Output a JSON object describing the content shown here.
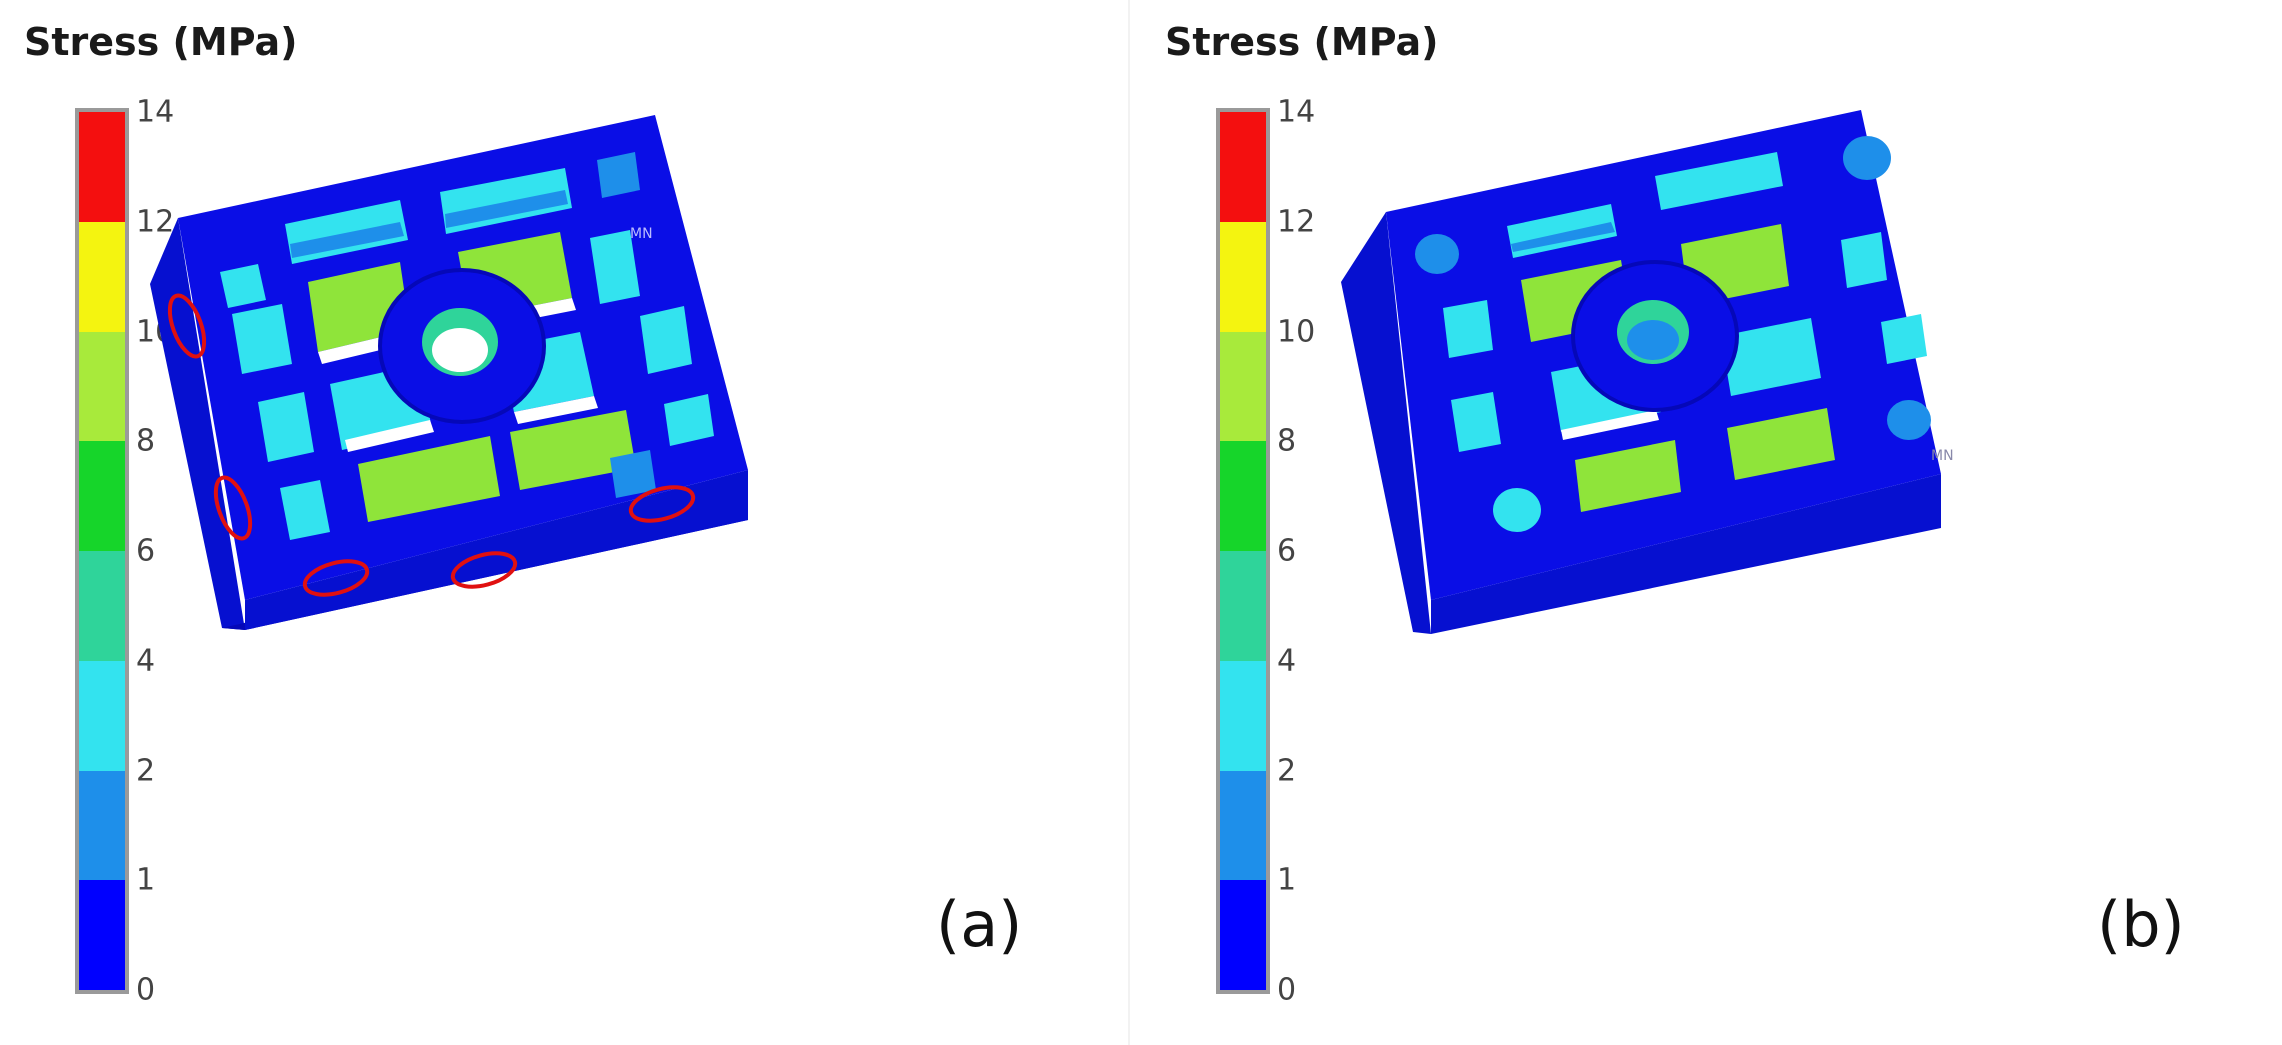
{
  "colorbar": {
    "title": "Stress (MPa)",
    "bands": [
      {
        "from": 0,
        "to": 1,
        "color": "#0000ff"
      },
      {
        "from": 1,
        "to": 2,
        "color": "#1e8fea"
      },
      {
        "from": 2,
        "to": 4,
        "color": "#33e3ef"
      },
      {
        "from": 4,
        "to": 6,
        "color": "#2fd49a"
      },
      {
        "from": 6,
        "to": 8,
        "color": "#16d52a"
      },
      {
        "from": 8,
        "to": 10,
        "color": "#a8ea3b"
      },
      {
        "from": 10,
        "to": 12,
        "color": "#f4f410"
      },
      {
        "from": 12,
        "to": 14,
        "color": "#f40f0f"
      }
    ],
    "ticks": [
      "0",
      "1",
      "2",
      "4",
      "6",
      "8",
      "10",
      "12",
      "14"
    ]
  },
  "panels": [
    {
      "label": "(a)",
      "highlight_color": "#e01010",
      "node_label": "MN"
    },
    {
      "label": "(b)",
      "node_label": "MN"
    }
  ],
  "colors": {
    "base": "#0a0ee6",
    "base_dark": "#0508b8",
    "base_side": "#0610d0",
    "stress_low": "#1e8fea",
    "stress_mid": "#33e3ef",
    "stress_teal": "#2fd49a",
    "stress_high": "#8fe43a",
    "void": "#ffffff"
  }
}
